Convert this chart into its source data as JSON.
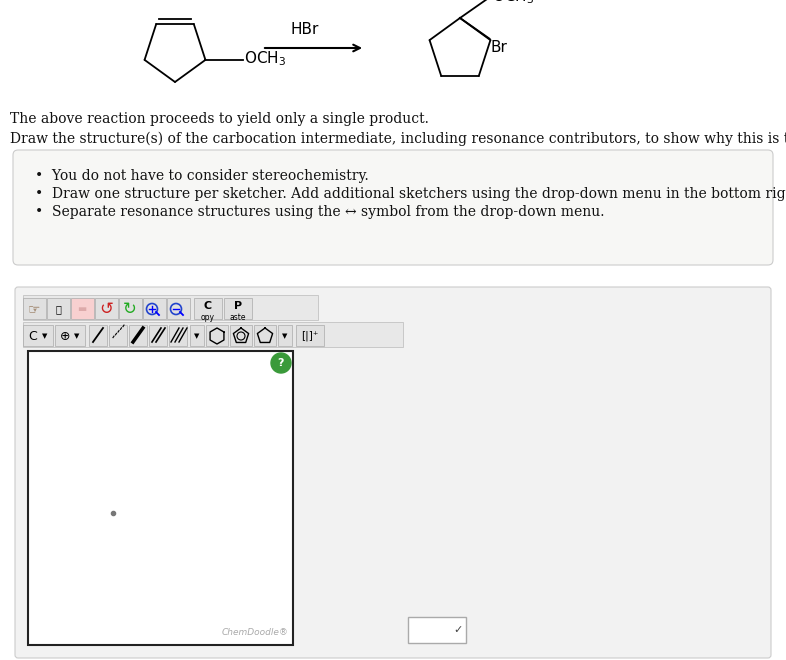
{
  "bg_color": "#ffffff",
  "panel_bg": "#f2f2f2",
  "bullet_box_bg": "#f7f7f5",
  "bullet_box_border": "#cccccc",
  "toolbar_bg": "#e8e8e8",
  "toolbar_border": "#bbbbbb",
  "sketcher_bg": "#ffffff",
  "sketcher_border": "#222222",
  "green_btn": "#3a9a3a",
  "chemdoodle_color": "#aaaaaa",
  "dd_border": "#aaaaaa",
  "text_color": "#111111",
  "gray_dot_color": "#777777",
  "title_line1": "The above reaction proceeds to yield only a single product.",
  "title_line2": "Draw the structure(s) of the carbocation intermediate, including resonance contributors, to show why this is the case.",
  "bullet1": "You do not have to consider stereochemistry.",
  "bullet2": "Draw one structure per sketcher. Add additional sketchers using the drop-down menu in the bottom right corner.",
  "bullet3": "Separate resonance structures using the ↔ symbol from the drop-down menu.",
  "hbr": "HBr",
  "chemdoodle_label": "ChemDoodle®",
  "font_body": 10,
  "font_chem": 11,
  "font_small": 8
}
